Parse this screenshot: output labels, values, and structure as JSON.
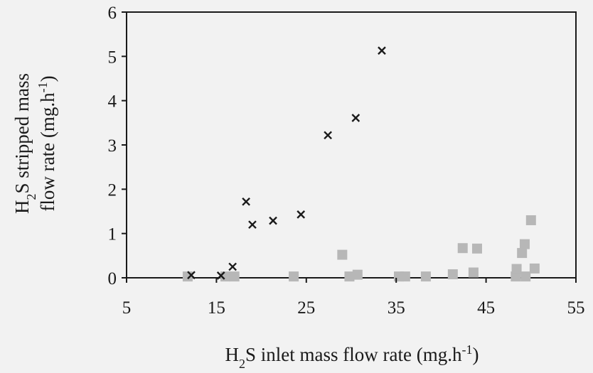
{
  "chart_data": {
    "type": "scatter",
    "title": "",
    "xlabel": {
      "main": "H",
      "sub": "2",
      "mid": "S inlet mass flow rate (mg.h",
      "sup": "-1",
      "end": ")"
    },
    "ylabel": {
      "line1": {
        "main": "H",
        "sub": "2",
        "rest": "S stripped mass"
      },
      "line2": {
        "main": "flow rate (mg.h",
        "sup": "-1",
        "end": ")"
      }
    },
    "xlim": [
      5,
      55
    ],
    "ylim": [
      0,
      6
    ],
    "x_ticks": [
      5,
      15,
      25,
      35,
      45,
      55
    ],
    "y_ticks": [
      0,
      1,
      2,
      3,
      4,
      5,
      6
    ],
    "grid": false,
    "legend": "none",
    "series": [
      {
        "marker": "x",
        "color": "#1a1a1a",
        "points": [
          [
            12.2,
            0.06
          ],
          [
            15.5,
            0.05
          ],
          [
            16.8,
            0.25
          ],
          [
            18.3,
            1.72
          ],
          [
            19.0,
            1.2
          ],
          [
            21.3,
            1.29
          ],
          [
            24.4,
            1.43
          ],
          [
            27.4,
            3.22
          ],
          [
            30.5,
            3.61
          ],
          [
            33.4,
            5.13
          ]
        ]
      },
      {
        "marker": "square",
        "color": "#b7b7b7",
        "points": [
          [
            11.8,
            0.03
          ],
          [
            16.0,
            0.03
          ],
          [
            17.0,
            0.03
          ],
          [
            23.6,
            0.03
          ],
          [
            29.0,
            0.52
          ],
          [
            29.8,
            0.03
          ],
          [
            30.7,
            0.07
          ],
          [
            35.3,
            0.03
          ],
          [
            36.0,
            0.03
          ],
          [
            38.3,
            0.03
          ],
          [
            41.3,
            0.08
          ],
          [
            42.4,
            0.67
          ],
          [
            43.6,
            0.12
          ],
          [
            44.0,
            0.66
          ],
          [
            48.3,
            0.03
          ],
          [
            48.4,
            0.2
          ],
          [
            49.0,
            0.56
          ],
          [
            49.3,
            0.76
          ],
          [
            49.4,
            0.03
          ],
          [
            50.0,
            1.3
          ],
          [
            50.4,
            0.21
          ]
        ]
      }
    ]
  }
}
